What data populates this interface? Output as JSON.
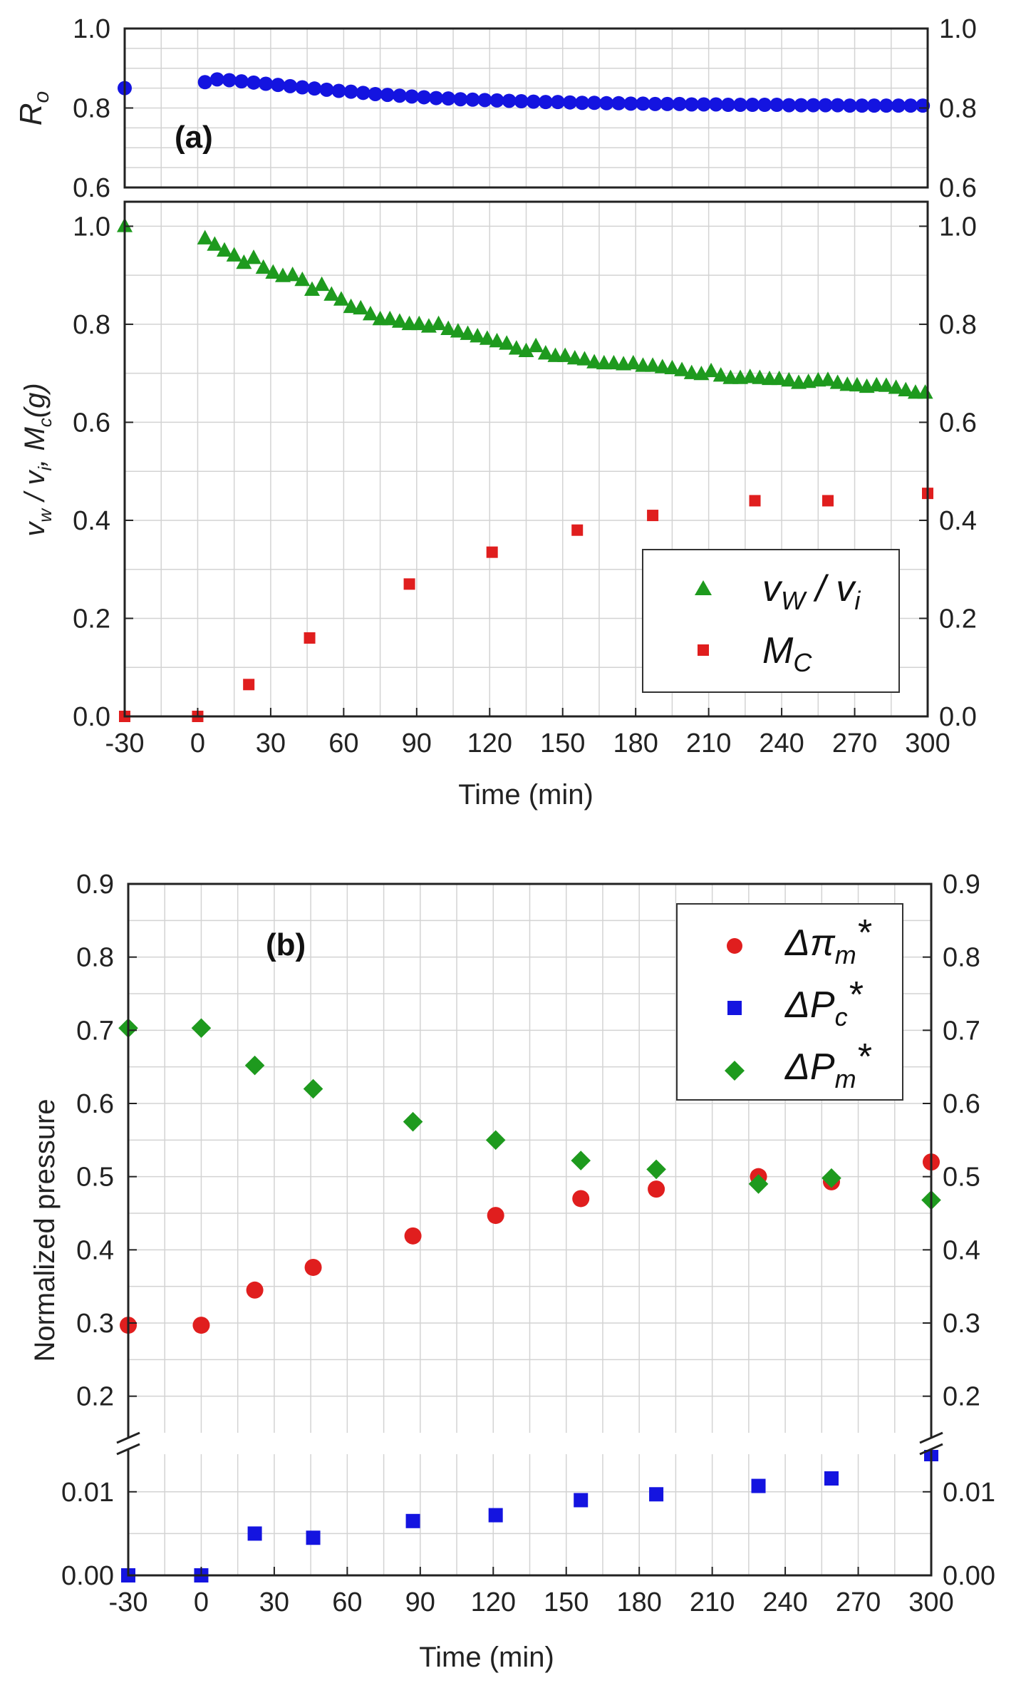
{
  "chart_data": [
    {
      "id": "a_top",
      "type": "scatter",
      "panel_label": "(a)",
      "ylabel": "R",
      "ylabel_sub": "o",
      "ylim": [
        0.6,
        1.0
      ],
      "yticks": [
        0.6,
        0.8,
        1.0
      ],
      "ytick_labels": [
        "0.6",
        "0.8",
        "1.0"
      ],
      "xlim": [
        -30,
        300
      ],
      "color": "#1414e0",
      "series": [
        {
          "name": "R_o",
          "marker": "circle",
          "x": [
            -30,
            3,
            8,
            13,
            18,
            23,
            28,
            33,
            38,
            43,
            48,
            53,
            58,
            63,
            68,
            73,
            78,
            83,
            88,
            93,
            98,
            103,
            108,
            113,
            118,
            123,
            128,
            133,
            138,
            143,
            148,
            153,
            158,
            163,
            168,
            173,
            178,
            183,
            188,
            193,
            198,
            203,
            208,
            213,
            218,
            223,
            228,
            233,
            238,
            243,
            248,
            253,
            258,
            263,
            268,
            273,
            278,
            283,
            288,
            293,
            298
          ],
          "y": [
            0.85,
            0.865,
            0.872,
            0.87,
            0.867,
            0.864,
            0.861,
            0.858,
            0.855,
            0.852,
            0.849,
            0.846,
            0.843,
            0.841,
            0.838,
            0.835,
            0.833,
            0.831,
            0.829,
            0.827,
            0.825,
            0.824,
            0.822,
            0.821,
            0.82,
            0.819,
            0.818,
            0.817,
            0.816,
            0.815,
            0.815,
            0.814,
            0.813,
            0.813,
            0.812,
            0.812,
            0.811,
            0.811,
            0.81,
            0.81,
            0.81,
            0.809,
            0.809,
            0.809,
            0.808,
            0.808,
            0.808,
            0.808,
            0.808,
            0.807,
            0.807,
            0.807,
            0.807,
            0.807,
            0.806,
            0.806,
            0.806,
            0.806,
            0.806,
            0.806,
            0.806
          ]
        }
      ]
    },
    {
      "id": "a_bottom",
      "type": "scatter",
      "ylabel_html": "v_w / v_i, M_c(g)",
      "xlabel": "Time (min)",
      "ylim": [
        0.0,
        1.05
      ],
      "yticks": [
        0.0,
        0.2,
        0.4,
        0.6,
        0.8,
        1.0
      ],
      "ytick_labels": [
        "0.0",
        "0.2",
        "0.4",
        "0.6",
        "0.8",
        "1.0"
      ],
      "xlim": [
        -30,
        300
      ],
      "xticks": [
        -30,
        0,
        30,
        60,
        90,
        120,
        150,
        180,
        210,
        240,
        270,
        300
      ],
      "xtick_labels": [
        "-30",
        "0",
        "30",
        "60",
        "90",
        "120",
        "150",
        "180",
        "210",
        "240",
        "270",
        "300"
      ],
      "legend": {
        "placement": "bottom-right",
        "entries": [
          "v",
          "M"
        ]
      },
      "series": [
        {
          "name": "v_w / v_i",
          "legend_main": "v",
          "legend_sub": "W",
          "legend_rest": " / v",
          "legend_sub2": "i",
          "marker": "triangle",
          "color": "#1e9a1e",
          "x": [
            -30,
            3,
            7,
            11,
            15,
            19,
            23,
            27,
            31,
            35,
            39,
            43,
            47,
            51,
            55,
            59,
            63,
            67,
            71,
            75,
            79,
            83,
            87,
            91,
            95,
            99,
            103,
            107,
            111,
            115,
            119,
            123,
            127,
            131,
            135,
            139,
            143,
            147,
            151,
            155,
            159,
            163,
            167,
            171,
            175,
            179,
            183,
            187,
            191,
            195,
            199,
            203,
            207,
            211,
            215,
            219,
            223,
            227,
            231,
            235,
            239,
            243,
            247,
            251,
            255,
            259,
            263,
            267,
            271,
            275,
            279,
            283,
            287,
            291,
            295,
            299
          ],
          "y": [
            1.0,
            0.975,
            0.962,
            0.95,
            0.94,
            0.925,
            0.935,
            0.915,
            0.905,
            0.898,
            0.9,
            0.89,
            0.87,
            0.88,
            0.86,
            0.85,
            0.835,
            0.832,
            0.82,
            0.81,
            0.81,
            0.805,
            0.8,
            0.8,
            0.795,
            0.8,
            0.79,
            0.785,
            0.78,
            0.775,
            0.77,
            0.765,
            0.76,
            0.75,
            0.745,
            0.755,
            0.74,
            0.735,
            0.735,
            0.73,
            0.728,
            0.722,
            0.72,
            0.72,
            0.718,
            0.72,
            0.715,
            0.715,
            0.712,
            0.71,
            0.706,
            0.7,
            0.698,
            0.704,
            0.695,
            0.69,
            0.69,
            0.692,
            0.69,
            0.688,
            0.688,
            0.685,
            0.68,
            0.682,
            0.685,
            0.686,
            0.68,
            0.676,
            0.675,
            0.672,
            0.675,
            0.674,
            0.67,
            0.665,
            0.66,
            0.66
          ]
        },
        {
          "name": "M_c",
          "legend_main": "M",
          "legend_sub": "C",
          "marker": "square",
          "color": "#e01e1e",
          "x": [
            -30,
            0,
            21,
            46,
            87,
            121,
            156,
            187,
            229,
            259,
            300
          ],
          "y": [
            0.0,
            0.0,
            0.065,
            0.16,
            0.27,
            0.335,
            0.38,
            0.41,
            0.44,
            0.44,
            0.455
          ]
        }
      ]
    },
    {
      "id": "b",
      "type": "scatter",
      "panel_label": "(b)",
      "ylabel": "Normalized pressure",
      "xlabel": "Time (min)",
      "broken_axis": true,
      "ylim_upper": [
        0.15,
        0.9
      ],
      "yticks_upper": [
        0.2,
        0.3,
        0.4,
        0.5,
        0.6,
        0.7,
        0.8,
        0.9
      ],
      "ytick_labels_upper": [
        "0.2",
        "0.3",
        "0.4",
        "0.5",
        "0.6",
        "0.7",
        "0.8",
        "0.9"
      ],
      "ylim_lower": [
        0.0,
        0.0145
      ],
      "yticks_lower": [
        0.0,
        0.01
      ],
      "ytick_labels_lower": [
        "0.00",
        "0.01"
      ],
      "xlim": [
        -30,
        300
      ],
      "xticks": [
        -30,
        0,
        30,
        60,
        90,
        120,
        150,
        180,
        210,
        240,
        270,
        300
      ],
      "xtick_labels": [
        "-30",
        "0",
        "30",
        "60",
        "90",
        "120",
        "150",
        "180",
        "210",
        "240",
        "270",
        "300"
      ],
      "legend": {
        "placement": "top-right"
      },
      "series": [
        {
          "name": "Δπ_m*",
          "legend_main": "Δπ",
          "legend_sub": "m",
          "legend_sup": "*",
          "marker": "circle",
          "color": "#e01e1e",
          "axis": "upper",
          "x": [
            -30,
            0,
            22,
            46,
            87,
            121,
            156,
            187,
            229,
            259,
            300
          ],
          "y": [
            0.297,
            0.297,
            0.345,
            0.376,
            0.419,
            0.447,
            0.47,
            0.483,
            0.5,
            0.493,
            0.52
          ]
        },
        {
          "name": "ΔP_c*",
          "legend_main": "ΔP",
          "legend_sub": "c",
          "legend_sup": "*",
          "marker": "square",
          "color": "#1414e0",
          "axis": "lower",
          "x": [
            -30,
            0,
            22,
            46,
            87,
            121,
            156,
            187,
            229,
            259,
            300
          ],
          "y": [
            0.0,
            0.0,
            0.005,
            0.0045,
            0.0065,
            0.0072,
            0.009,
            0.0097,
            0.0107,
            0.0116,
            0.0145
          ]
        },
        {
          "name": "ΔP_m*",
          "legend_main": "ΔP",
          "legend_sub": "m",
          "legend_sup": "*",
          "marker": "diamond",
          "color": "#1e9a1e",
          "axis": "upper",
          "x": [
            -30,
            0,
            22,
            46,
            87,
            121,
            156,
            187,
            229,
            259,
            300
          ],
          "y": [
            0.703,
            0.703,
            0.652,
            0.62,
            0.575,
            0.55,
            0.522,
            0.51,
            0.49,
            0.498,
            0.468
          ]
        }
      ]
    }
  ]
}
